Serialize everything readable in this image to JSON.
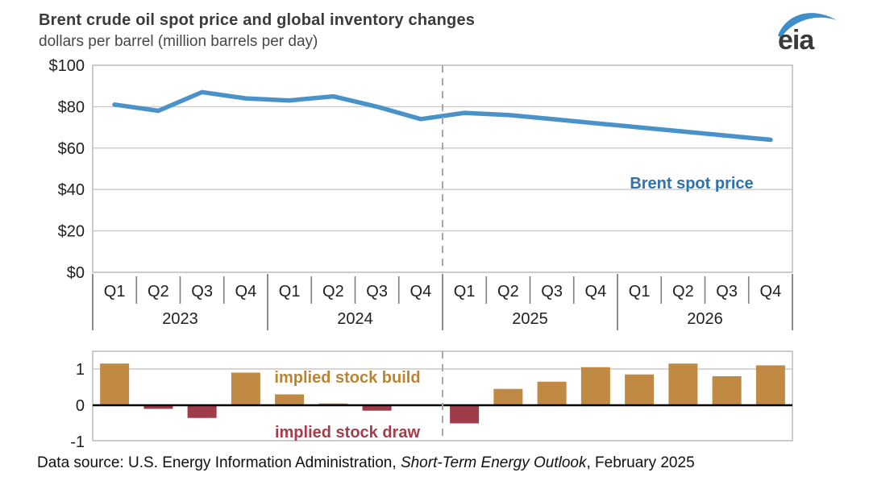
{
  "header": {
    "title": "Brent crude oil spot price and global inventory changes",
    "subtitle": "dollars per barrel (million barrels per day)",
    "logo_text": "eia"
  },
  "axis": {
    "years": [
      "2023",
      "2024",
      "2025",
      "2026"
    ],
    "quarters_per_year": [
      "Q1",
      "Q2",
      "Q3",
      "Q4"
    ]
  },
  "chart_data": [
    {
      "type": "line",
      "name": "brent-spot-price",
      "series_label": "Brent spot price",
      "unit": "dollars per barrel",
      "categories": [
        "2023 Q1",
        "2023 Q2",
        "2023 Q3",
        "2023 Q4",
        "2024 Q1",
        "2024 Q2",
        "2024 Q3",
        "2024 Q4",
        "2025 Q1",
        "2025 Q2",
        "2025 Q3",
        "2025 Q4",
        "2026 Q1",
        "2026 Q2",
        "2026 Q3",
        "2026 Q4"
      ],
      "values": [
        81,
        78,
        87,
        84,
        83,
        85,
        80,
        74,
        77,
        76,
        74,
        72,
        70,
        68,
        66,
        64
      ],
      "ylim": [
        0,
        100
      ],
      "ytick_values": [
        0,
        20,
        40,
        60,
        80,
        100
      ],
      "ytick_labels": [
        "$0",
        "$20",
        "$40",
        "$60",
        "$80",
        "$100"
      ],
      "grid": true,
      "forecast_divider_after_index": 7,
      "line_color": "#4a93c8",
      "label_color": "#2e74a8"
    },
    {
      "type": "bar",
      "name": "implied-global-inventory-change",
      "unit": "million barrels per day",
      "categories": [
        "2023 Q1",
        "2023 Q2",
        "2023 Q3",
        "2023 Q4",
        "2024 Q1",
        "2024 Q2",
        "2024 Q3",
        "2024 Q4",
        "2025 Q1",
        "2025 Q2",
        "2025 Q3",
        "2025 Q4",
        "2026 Q1",
        "2026 Q2",
        "2026 Q3",
        "2026 Q4"
      ],
      "values": [
        1.15,
        -0.1,
        -0.35,
        0.9,
        0.3,
        0.05,
        -0.15,
        0,
        -0.5,
        0.45,
        0.65,
        1.05,
        0.85,
        1.15,
        0.8,
        1.1
      ],
      "ylim": [
        -1,
        1.45
      ],
      "ytick_values": [
        1,
        0,
        -1
      ],
      "ytick_labels": [
        "1",
        "0",
        "-1"
      ],
      "grid": true,
      "forecast_divider_after_index": 7,
      "positive_label": "implied stock build",
      "negative_label": "implied stock draw",
      "positive_color": "#c18a44",
      "negative_color": "#a03b4a",
      "positive_label_color": "#bb8433",
      "negative_label_color": "#a43e4c"
    }
  ],
  "footer": {
    "text_before_italic": "Data source: U.S. Energy Information Administration, ",
    "italic_text": "Short-Term Energy Outlook",
    "text_after_italic": ", February 2025"
  },
  "style_colors": {
    "grid": "#c9c9c9",
    "frame": "#c0c0c0",
    "quarter_divider": "#808080",
    "dashed_divider": "#a8a8a8",
    "zero_line": "#000000",
    "axis_text": "#212121",
    "logo_swoosh": "#3e8ec8",
    "logo_text": "#3a3a3a"
  }
}
